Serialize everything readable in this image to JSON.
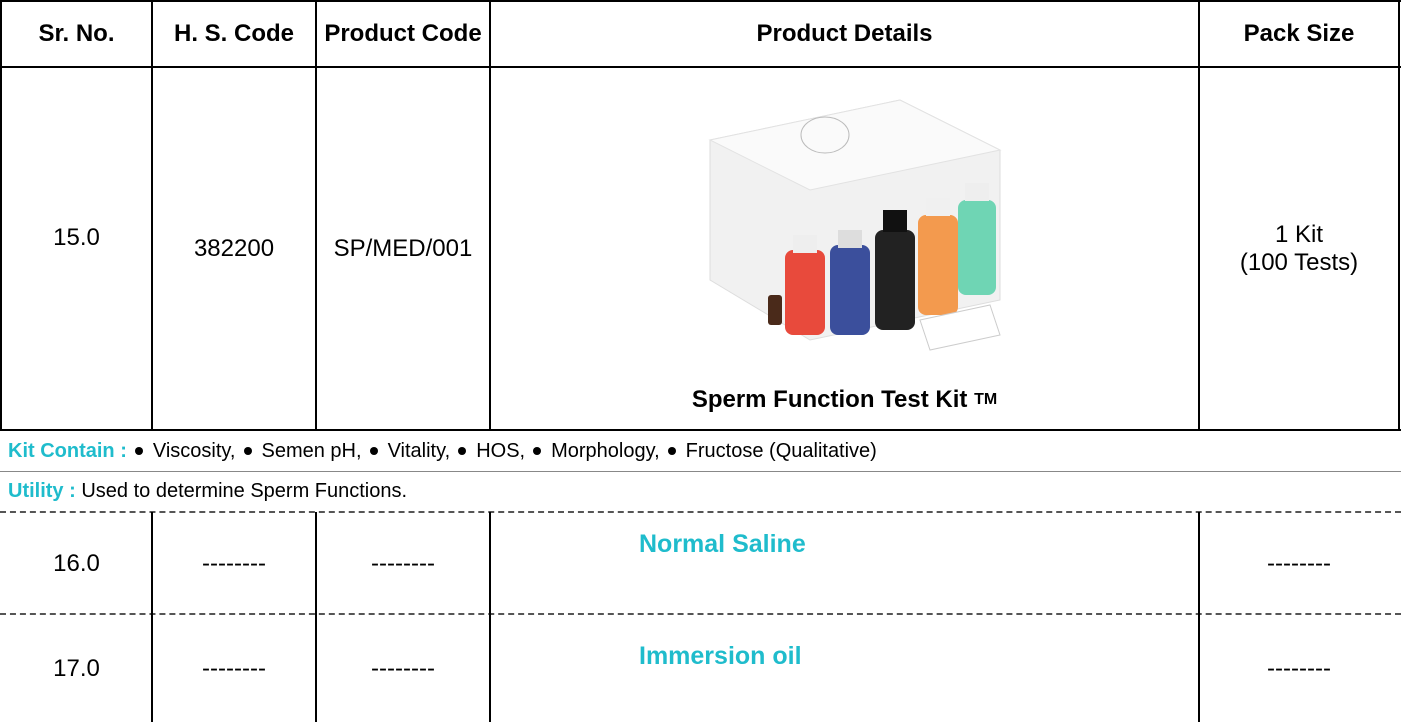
{
  "table": {
    "headers": [
      "Sr. No.",
      "H. S. Code",
      "Product Code",
      "Product Details",
      "Pack Size"
    ],
    "rows": [
      {
        "sr": "15.0",
        "hs": "382200",
        "code": "SP/MED/001",
        "details": {
          "name": "Sperm Function Test Kit",
          "mark": "TM"
        },
        "pack": [
          "1 Kit",
          "(100 Tests)"
        ]
      },
      {
        "sr": "16.0",
        "hs": "--------",
        "code": "--------",
        "details": {
          "name": "Normal Saline"
        },
        "pack": [
          "--------"
        ]
      },
      {
        "sr": "17.0",
        "hs": "--------",
        "code": "--------",
        "details": {
          "name": "Immersion oil"
        },
        "pack": [
          "--------"
        ]
      }
    ],
    "kit_contain": {
      "label": "Kit Contain :",
      "items": [
        "Viscosity,",
        "Semen pH,",
        "Vitality,",
        "HOS,",
        "Morphology,",
        "Fructose (Qualitative)"
      ]
    },
    "utility": {
      "label": "Utility :",
      "text": "Used to determine Sperm Functions."
    }
  }
}
